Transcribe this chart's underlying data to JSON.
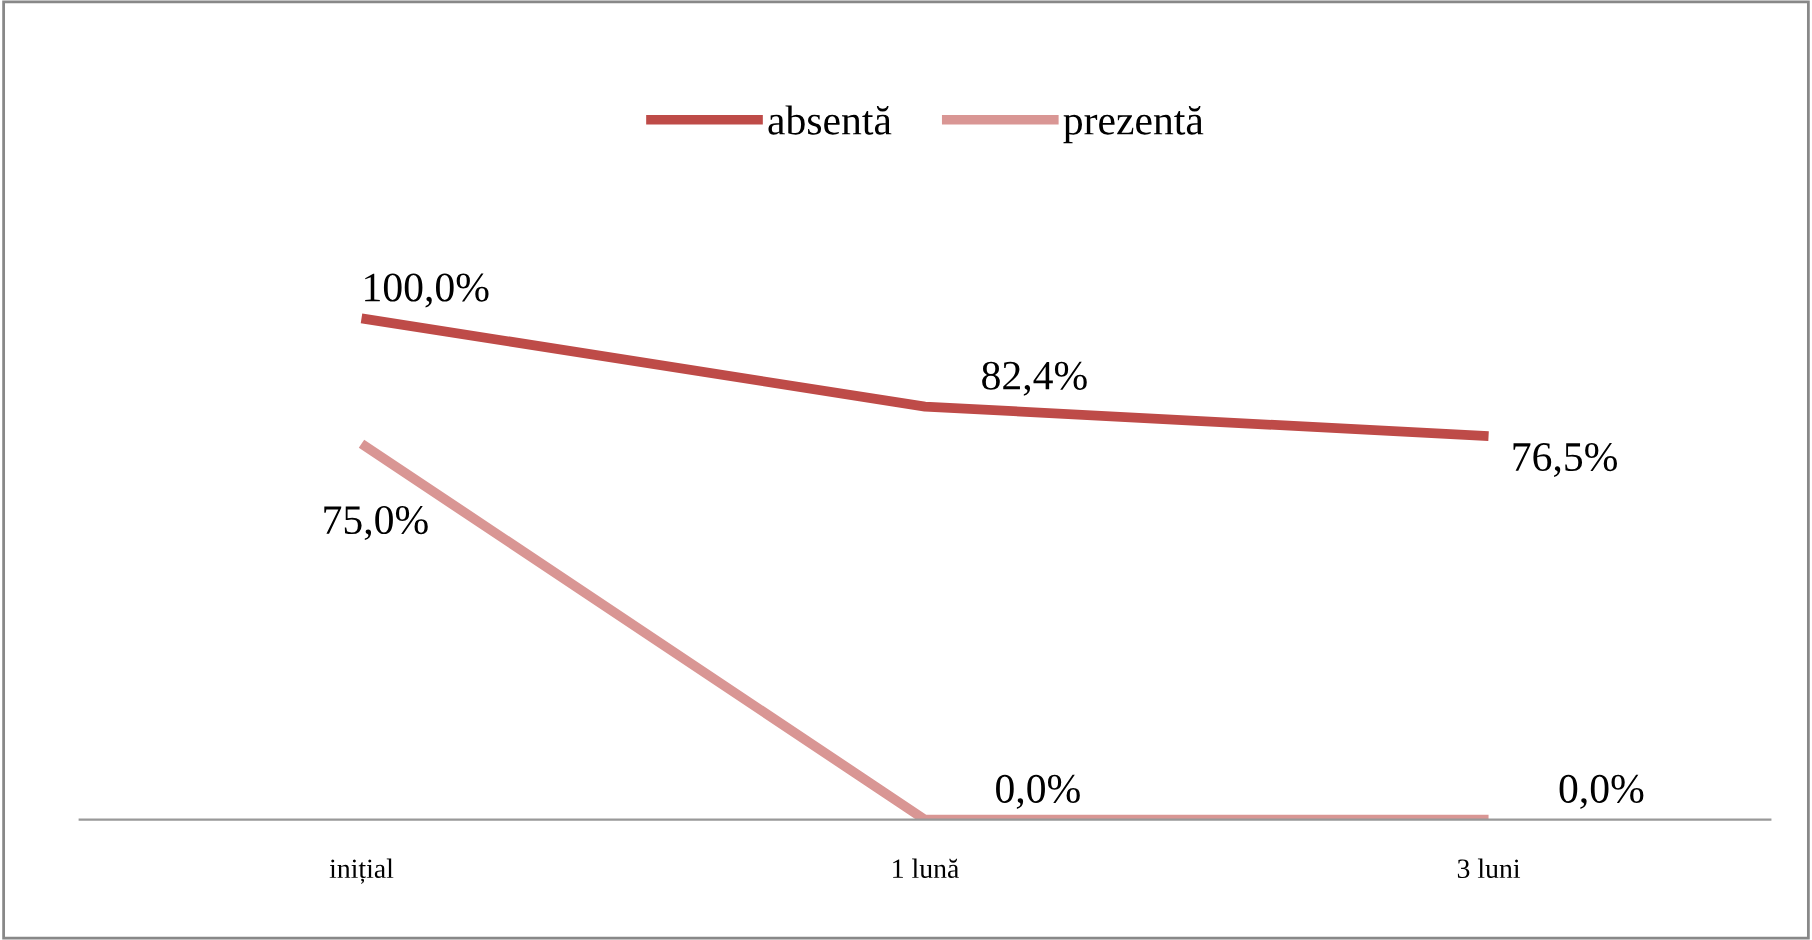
{
  "chart_data": {
    "type": "line",
    "categories": [
      "inițial",
      "1 lună",
      "3 luni"
    ],
    "series": [
      {
        "name": "absentă",
        "color": "#be4b48",
        "values": [
          100.0,
          82.4,
          76.5
        ],
        "value_labels": [
          "100,0%",
          "82,4%",
          "76,5%"
        ]
      },
      {
        "name": "prezentă",
        "color": "#d99694",
        "values": [
          75.0,
          0.0,
          0.0
        ],
        "value_labels": [
          "75,0%",
          "0,0%",
          "0,0%"
        ]
      }
    ],
    "legend": "top",
    "grid": false,
    "marker": "none",
    "line_style": "solid"
  }
}
